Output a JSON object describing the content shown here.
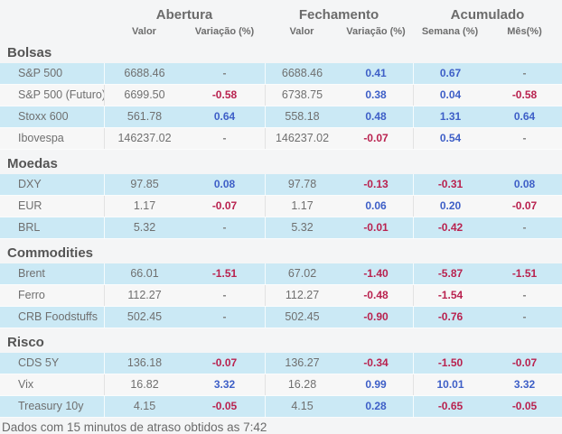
{
  "table": {
    "groups": [
      "Abertura",
      "Fechamento",
      "Acumulado"
    ],
    "subheaders": [
      "Valor",
      "Variação (%)",
      "Valor",
      "Variação (%)",
      "Semana (%)",
      "Mês(%)"
    ],
    "cell_names": [
      "abertura-valor",
      "abertura-variacao",
      "fechamento-valor",
      "fechamento-variacao",
      "acumulado-semana",
      "acumulado-mes"
    ]
  },
  "sections": [
    {
      "title": "Bolsas",
      "rows": [
        {
          "label": "S&P 500",
          "cells": [
            {
              "v": "6688.46",
              "type": "plain"
            },
            {
              "v": "-",
              "type": "dash"
            },
            {
              "v": "6688.46",
              "type": "plain"
            },
            {
              "v": "0.41",
              "type": "pos"
            },
            {
              "v": "0.67",
              "type": "pos"
            },
            {
              "v": "-",
              "type": "dash"
            }
          ]
        },
        {
          "label": "S&P 500 (Futuro)",
          "cells": [
            {
              "v": "6699.50",
              "type": "plain"
            },
            {
              "v": "-0.58",
              "type": "neg"
            },
            {
              "v": "6738.75",
              "type": "plain"
            },
            {
              "v": "0.38",
              "type": "pos"
            },
            {
              "v": "0.04",
              "type": "pos"
            },
            {
              "v": "-0.58",
              "type": "neg"
            }
          ]
        },
        {
          "label": "Stoxx 600",
          "cells": [
            {
              "v": "561.78",
              "type": "plain"
            },
            {
              "v": "0.64",
              "type": "pos"
            },
            {
              "v": "558.18",
              "type": "plain"
            },
            {
              "v": "0.48",
              "type": "pos"
            },
            {
              "v": "1.31",
              "type": "pos"
            },
            {
              "v": "0.64",
              "type": "pos"
            }
          ]
        },
        {
          "label": "Ibovespa",
          "cells": [
            {
              "v": "146237.02",
              "type": "plain"
            },
            {
              "v": "-",
              "type": "dash"
            },
            {
              "v": "146237.02",
              "type": "plain"
            },
            {
              "v": "-0.07",
              "type": "neg"
            },
            {
              "v": "0.54",
              "type": "pos"
            },
            {
              "v": "-",
              "type": "dash"
            }
          ]
        }
      ]
    },
    {
      "title": "Moedas",
      "rows": [
        {
          "label": "DXY",
          "cells": [
            {
              "v": "97.85",
              "type": "plain"
            },
            {
              "v": "0.08",
              "type": "pos"
            },
            {
              "v": "97.78",
              "type": "plain"
            },
            {
              "v": "-0.13",
              "type": "neg"
            },
            {
              "v": "-0.31",
              "type": "neg"
            },
            {
              "v": "0.08",
              "type": "pos"
            }
          ]
        },
        {
          "label": "EUR",
          "cells": [
            {
              "v": "1.17",
              "type": "plain"
            },
            {
              "v": "-0.07",
              "type": "neg"
            },
            {
              "v": "1.17",
              "type": "plain"
            },
            {
              "v": "0.06",
              "type": "pos"
            },
            {
              "v": "0.20",
              "type": "pos"
            },
            {
              "v": "-0.07",
              "type": "neg"
            }
          ]
        },
        {
          "label": "BRL",
          "cells": [
            {
              "v": "5.32",
              "type": "plain"
            },
            {
              "v": "-",
              "type": "dash"
            },
            {
              "v": "5.32",
              "type": "plain"
            },
            {
              "v": "-0.01",
              "type": "neg"
            },
            {
              "v": "-0.42",
              "type": "neg"
            },
            {
              "v": "-",
              "type": "dash"
            }
          ]
        }
      ]
    },
    {
      "title": "Commodities",
      "rows": [
        {
          "label": "Brent",
          "cells": [
            {
              "v": "66.01",
              "type": "plain"
            },
            {
              "v": "-1.51",
              "type": "neg"
            },
            {
              "v": "67.02",
              "type": "plain"
            },
            {
              "v": "-1.40",
              "type": "neg"
            },
            {
              "v": "-5.87",
              "type": "neg"
            },
            {
              "v": "-1.51",
              "type": "neg"
            }
          ]
        },
        {
          "label": "Ferro",
          "cells": [
            {
              "v": "112.27",
              "type": "plain"
            },
            {
              "v": "-",
              "type": "dash"
            },
            {
              "v": "112.27",
              "type": "plain"
            },
            {
              "v": "-0.48",
              "type": "neg"
            },
            {
              "v": "-1.54",
              "type": "neg"
            },
            {
              "v": "-",
              "type": "dash"
            }
          ]
        },
        {
          "label": "CRB Foodstuffs",
          "cells": [
            {
              "v": "502.45",
              "type": "plain"
            },
            {
              "v": "-",
              "type": "dash"
            },
            {
              "v": "502.45",
              "type": "plain"
            },
            {
              "v": "-0.90",
              "type": "neg"
            },
            {
              "v": "-0.76",
              "type": "neg"
            },
            {
              "v": "-",
              "type": "dash"
            }
          ]
        }
      ]
    },
    {
      "title": "Risco",
      "rows": [
        {
          "label": "CDS 5Y",
          "cells": [
            {
              "v": "136.18",
              "type": "plain"
            },
            {
              "v": "-0.07",
              "type": "neg"
            },
            {
              "v": "136.27",
              "type": "plain"
            },
            {
              "v": "-0.34",
              "type": "neg"
            },
            {
              "v": "-1.50",
              "type": "neg"
            },
            {
              "v": "-0.07",
              "type": "neg"
            }
          ]
        },
        {
          "label": "Vix",
          "cells": [
            {
              "v": "16.82",
              "type": "plain"
            },
            {
              "v": "3.32",
              "type": "pos"
            },
            {
              "v": "16.28",
              "type": "plain"
            },
            {
              "v": "0.99",
              "type": "pos"
            },
            {
              "v": "10.01",
              "type": "pos"
            },
            {
              "v": "3.32",
              "type": "pos"
            }
          ]
        },
        {
          "label": "Treasury 10y",
          "cells": [
            {
              "v": "4.15",
              "type": "plain"
            },
            {
              "v": "-0.05",
              "type": "neg"
            },
            {
              "v": "4.15",
              "type": "plain"
            },
            {
              "v": "0.28",
              "type": "pos"
            },
            {
              "v": "-0.65",
              "type": "neg"
            },
            {
              "v": "-0.05",
              "type": "neg"
            }
          ]
        }
      ]
    }
  ],
  "footer": {
    "text": "Dados com 15 minutos de atraso obtidos as 7:42"
  },
  "colors": {
    "positive": "#3e5fc7",
    "negative": "#b9224f",
    "row_highlight": "#cbe9f5",
    "row_alt": "#f7f7f7"
  }
}
